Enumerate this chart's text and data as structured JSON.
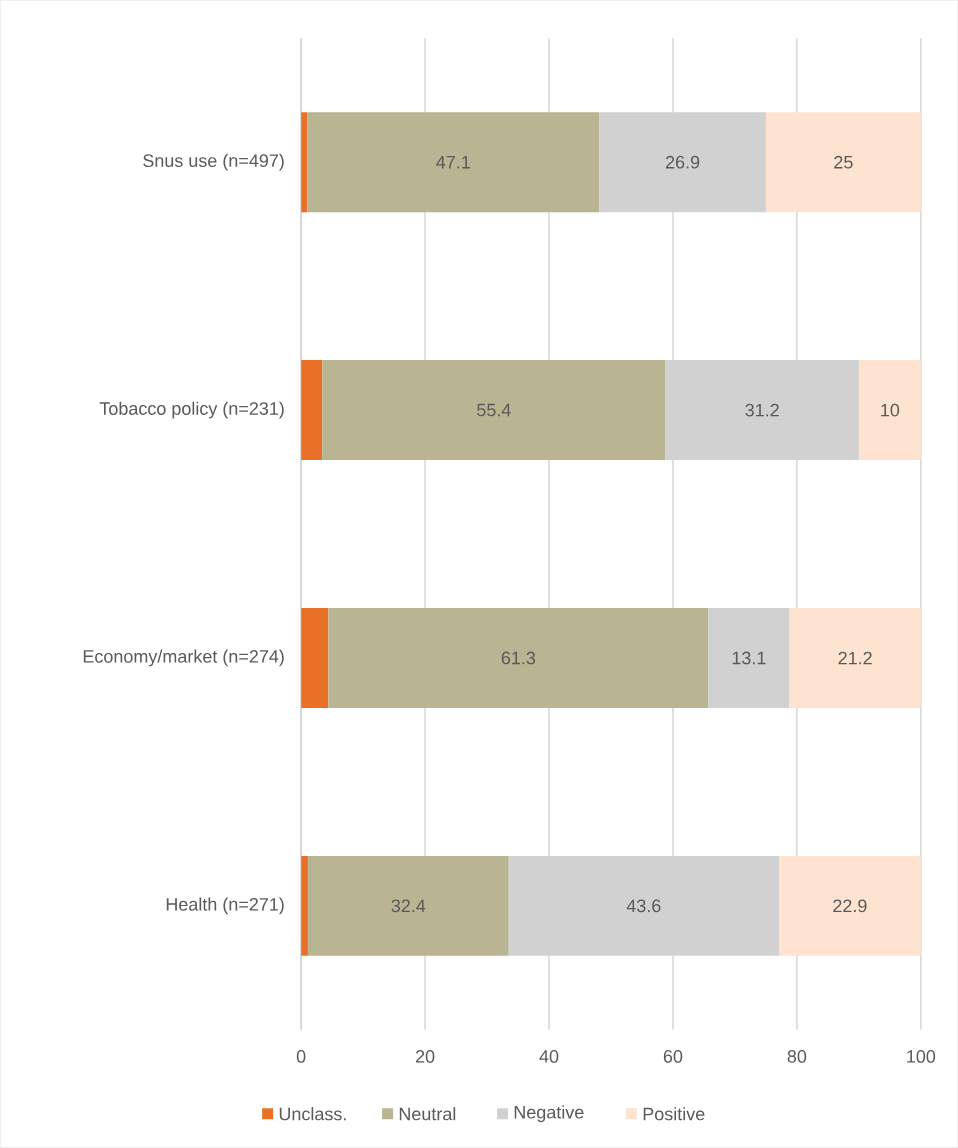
{
  "chart_data": {
    "type": "bar",
    "orientation": "horizontal",
    "stacked": true,
    "categories": [
      "Snus use (n=497)",
      "Tobacco policy (n=231)",
      "Economy/market (n=274)",
      "Health (n=271)"
    ],
    "series": [
      {
        "name": "Unclass.",
        "color": "#e97127",
        "values": [
          1.0,
          3.4,
          4.4,
          1.1
        ]
      },
      {
        "name": "Neutral",
        "color": "#b9b593",
        "values": [
          47.1,
          55.4,
          61.3,
          32.4
        ],
        "value_labels": [
          "47.1",
          "55.4",
          "61.3",
          "32.4"
        ]
      },
      {
        "name": "Negative",
        "color": "#d0d1d0",
        "values": [
          26.9,
          31.2,
          13.1,
          43.6
        ],
        "value_labels": [
          "26.9",
          "31.2",
          "13.1",
          "43.6"
        ]
      },
      {
        "name": "Positive",
        "color": "#fde3d0",
        "values": [
          25,
          10,
          21.2,
          22.9
        ],
        "value_labels": [
          "25",
          "10",
          "21.2",
          "22.9"
        ]
      }
    ],
    "xlim": [
      0,
      100
    ],
    "xticks": [
      0,
      20,
      40,
      60,
      80,
      100
    ],
    "grid": "x",
    "legend": "bottom"
  }
}
